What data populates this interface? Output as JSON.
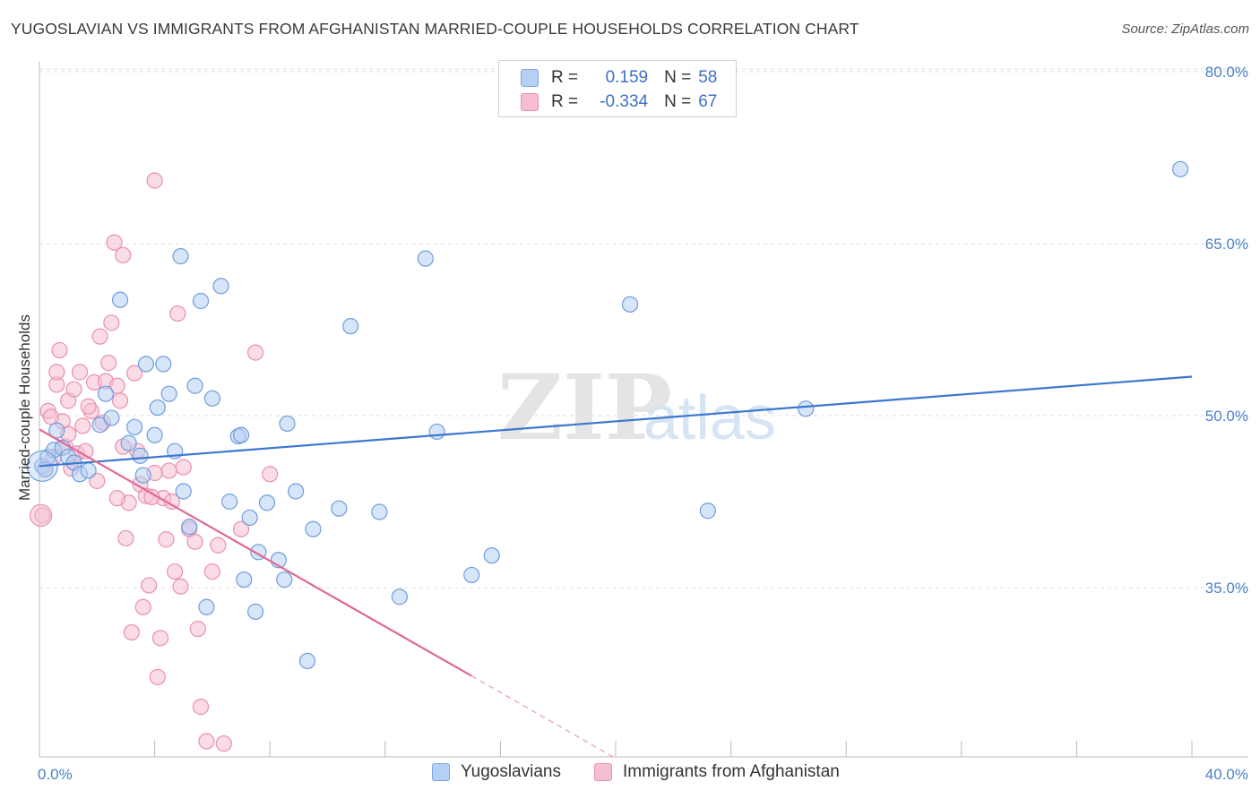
{
  "title": "YUGOSLAVIAN VS IMMIGRANTS FROM AFGHANISTAN MARRIED-COUPLE HOUSEHOLDS CORRELATION CHART",
  "source": "Source: ZipAtlas.com",
  "colors": {
    "blue": "#4a86d4",
    "blue_fill": "#b5d0f2",
    "pink": "#e06894",
    "pink_fill": "#f6bfd1",
    "tick": "#4a80c8",
    "grid": "#dcdcdc"
  },
  "legend": {
    "rows": [
      {
        "r_label": "R =",
        "r_value": "0.159",
        "n_label": "N =",
        "n_value": "58"
      },
      {
        "r_label": "R =",
        "r_value": "-0.334",
        "n_label": "N =",
        "n_value": "67"
      }
    ]
  },
  "bottom_legend": [
    "Yugoslavians",
    "Immigrants from Afghanistan"
  ],
  "chart_data": {
    "type": "scatter",
    "title": "YUGOSLAVIAN VS IMMIGRANTS FROM AFGHANISTAN MARRIED-COUPLE HOUSEHOLDS CORRELATION CHART",
    "xlabel": "",
    "ylabel": "Married-couple Households",
    "xlim": [
      0,
      40
    ],
    "ylim": [
      20,
      82
    ],
    "x_tick_labels": [
      "0.0%",
      "40.0%"
    ],
    "y_ticks": [
      35,
      50,
      65,
      80
    ],
    "y_tick_labels": [
      "35.0%",
      "50.0%",
      "65.0%",
      "80.0%"
    ],
    "grid": true,
    "watermark": {
      "part1": "ZIP",
      "part2": "atlas"
    },
    "series": [
      {
        "name": "Yugoslavians",
        "color": "#4a86d4",
        "R": 0.159,
        "N": 58,
        "trend": {
          "x0": 0.0,
          "y0": 45.6,
          "x1": 40.0,
          "y1": 53.4
        },
        "points": [
          [
            0.1,
            45.6
          ],
          [
            0.3,
            46.4
          ],
          [
            0.5,
            47.0
          ],
          [
            0.6,
            48.7
          ],
          [
            0.8,
            47.2
          ],
          [
            1.0,
            46.4
          ],
          [
            1.2,
            45.9
          ],
          [
            1.4,
            44.9
          ],
          [
            1.7,
            45.2
          ],
          [
            2.1,
            49.2
          ],
          [
            2.3,
            51.9
          ],
          [
            2.5,
            49.8
          ],
          [
            2.8,
            60.1
          ],
          [
            3.1,
            47.6
          ],
          [
            3.3,
            49.0
          ],
          [
            3.5,
            46.5
          ],
          [
            3.6,
            44.8
          ],
          [
            3.7,
            54.5
          ],
          [
            4.0,
            48.3
          ],
          [
            4.1,
            50.7
          ],
          [
            4.3,
            54.5
          ],
          [
            4.5,
            51.9
          ],
          [
            4.7,
            46.9
          ],
          [
            4.9,
            63.9
          ],
          [
            5.0,
            43.4
          ],
          [
            5.2,
            40.3
          ],
          [
            5.4,
            52.6
          ],
          [
            5.6,
            60.0
          ],
          [
            5.8,
            33.3
          ],
          [
            6.0,
            51.5
          ],
          [
            6.3,
            61.3
          ],
          [
            6.6,
            42.5
          ],
          [
            6.9,
            48.2
          ],
          [
            7.0,
            48.3
          ],
          [
            7.1,
            35.7
          ],
          [
            7.3,
            41.1
          ],
          [
            7.5,
            32.9
          ],
          [
            7.6,
            38.1
          ],
          [
            7.9,
            42.4
          ],
          [
            8.3,
            37.4
          ],
          [
            8.5,
            35.7
          ],
          [
            8.6,
            49.3
          ],
          [
            8.9,
            43.4
          ],
          [
            9.3,
            28.6
          ],
          [
            9.5,
            40.1
          ],
          [
            10.4,
            41.9
          ],
          [
            10.8,
            57.8
          ],
          [
            11.8,
            41.6
          ],
          [
            12.5,
            34.2
          ],
          [
            13.4,
            63.7
          ],
          [
            13.8,
            48.6
          ],
          [
            15.0,
            36.1
          ],
          [
            15.7,
            37.8
          ],
          [
            20.5,
            59.7
          ],
          [
            23.2,
            41.7
          ],
          [
            26.6,
            50.6
          ],
          [
            39.6,
            71.5
          ],
          [
            0.2,
            45.3
          ]
        ]
      },
      {
        "name": "Immigrants from Afghanistan",
        "color": "#e06894",
        "R": -0.334,
        "N": 67,
        "trend": {
          "x0": 0.0,
          "y0": 48.8,
          "x1": 15.0,
          "y1": 27.3,
          "dash_x1": 20.0,
          "dash_y1": 20.1
        },
        "points": [
          [
            0.1,
            41.3
          ],
          [
            0.2,
            45.4
          ],
          [
            0.3,
            50.4
          ],
          [
            0.5,
            46.4
          ],
          [
            0.6,
            52.7
          ],
          [
            0.6,
            53.8
          ],
          [
            0.7,
            55.7
          ],
          [
            0.8,
            49.5
          ],
          [
            0.9,
            47.3
          ],
          [
            1.0,
            51.3
          ],
          [
            1.0,
            48.4
          ],
          [
            1.1,
            45.4
          ],
          [
            1.2,
            52.3
          ],
          [
            1.3,
            46.7
          ],
          [
            1.4,
            53.8
          ],
          [
            1.5,
            49.1
          ],
          [
            1.6,
            46.9
          ],
          [
            1.8,
            50.4
          ],
          [
            1.9,
            52.9
          ],
          [
            2.0,
            44.3
          ],
          [
            2.1,
            56.9
          ],
          [
            2.2,
            49.4
          ],
          [
            2.3,
            53.0
          ],
          [
            2.4,
            54.6
          ],
          [
            2.5,
            58.1
          ],
          [
            2.6,
            65.1
          ],
          [
            2.7,
            52.6
          ],
          [
            2.8,
            51.3
          ],
          [
            2.9,
            47.3
          ],
          [
            3.0,
            39.3
          ],
          [
            3.1,
            42.4
          ],
          [
            3.2,
            31.1
          ],
          [
            3.3,
            53.7
          ],
          [
            3.5,
            44.0
          ],
          [
            3.6,
            33.3
          ],
          [
            3.7,
            43.0
          ],
          [
            3.8,
            35.2
          ],
          [
            4.0,
            70.5
          ],
          [
            4.1,
            27.2
          ],
          [
            4.2,
            30.6
          ],
          [
            4.3,
            42.8
          ],
          [
            4.4,
            39.2
          ],
          [
            4.5,
            45.2
          ],
          [
            4.6,
            42.5
          ],
          [
            4.7,
            36.4
          ],
          [
            4.8,
            58.9
          ],
          [
            4.9,
            35.1
          ],
          [
            5.0,
            45.5
          ],
          [
            5.2,
            40.1
          ],
          [
            5.4,
            39.0
          ],
          [
            5.5,
            31.4
          ],
          [
            5.6,
            24.6
          ],
          [
            5.8,
            21.6
          ],
          [
            6.0,
            36.4
          ],
          [
            6.2,
            38.7
          ],
          [
            6.4,
            21.4
          ],
          [
            7.0,
            40.1
          ],
          [
            7.5,
            55.5
          ],
          [
            8.0,
            44.9
          ],
          [
            2.9,
            64.0
          ],
          [
            1.2,
            45.9
          ],
          [
            3.4,
            46.9
          ],
          [
            2.7,
            42.8
          ],
          [
            1.7,
            50.8
          ],
          [
            4.0,
            45.0
          ],
          [
            0.4,
            49.9
          ],
          [
            3.9,
            42.9
          ]
        ]
      }
    ]
  }
}
